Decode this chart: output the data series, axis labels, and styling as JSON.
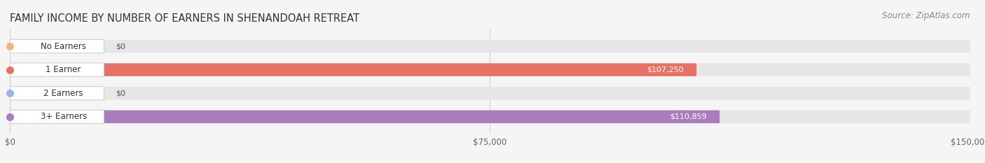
{
  "title": "FAMILY INCOME BY NUMBER OF EARNERS IN SHENANDOAH RETREAT",
  "source": "Source: ZipAtlas.com",
  "categories": [
    "No Earners",
    "1 Earner",
    "2 Earners",
    "3+ Earners"
  ],
  "values": [
    0,
    107250,
    0,
    110859
  ],
  "bar_colors": [
    "#f0b87a",
    "#e57267",
    "#9ab8e0",
    "#a97bbf"
  ],
  "label_colors": [
    "#555555",
    "#ffffff",
    "#555555",
    "#ffffff"
  ],
  "value_labels": [
    "$0",
    "$107,250",
    "$0",
    "$110,859"
  ],
  "xlim": [
    0,
    150000
  ],
  "xticks": [
    0,
    75000,
    150000
  ],
  "xtick_labels": [
    "$0",
    "$75,000",
    "$150,000"
  ],
  "background_color": "#f5f5f5",
  "bar_background": "#e6e6e6",
  "title_fontsize": 10.5,
  "source_fontsize": 8.5,
  "tick_fontsize": 8.5,
  "bar_label_fontsize": 8.5,
  "value_label_fontsize": 8.0
}
